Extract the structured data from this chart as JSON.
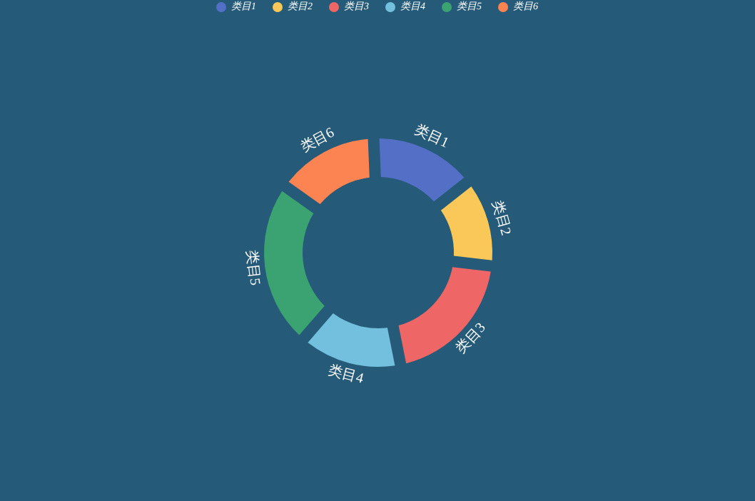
{
  "chart_data": {
    "type": "donut",
    "categories": [
      "类目1",
      "类目2",
      "类目3",
      "类目4",
      "类目5",
      "类目6"
    ],
    "values": [
      15,
      12.5,
      20,
      14.5,
      23.5,
      14.5
    ],
    "colors": [
      "#5470c6",
      "#fac858",
      "#ee6666",
      "#73c0de",
      "#3ba272",
      "#fc8452"
    ],
    "legend": "top"
  }
}
